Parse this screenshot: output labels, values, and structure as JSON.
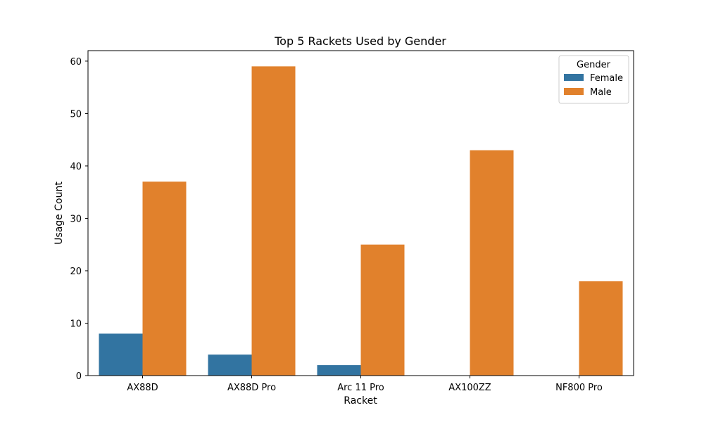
{
  "chart_data": {
    "type": "bar",
    "title": "Top 5 Rackets Used by Gender",
    "xlabel": "Racket",
    "ylabel": "Usage Count",
    "categories": [
      "AX88D",
      "AX88D Pro",
      "Arc 11 Pro",
      "AX100ZZ",
      "NF800 Pro"
    ],
    "series": [
      {
        "name": "Female",
        "color": "#3274a1",
        "values": [
          8,
          4,
          2,
          null,
          null
        ]
      },
      {
        "name": "Male",
        "color": "#e1812c",
        "values": [
          37,
          59,
          25,
          43,
          18
        ]
      }
    ],
    "ylim": [
      0,
      62.0
    ],
    "yticks": [
      0,
      10,
      20,
      30,
      40,
      50,
      60
    ],
    "grid": false,
    "legend": {
      "title": "Gender",
      "placement": "top-right"
    }
  }
}
